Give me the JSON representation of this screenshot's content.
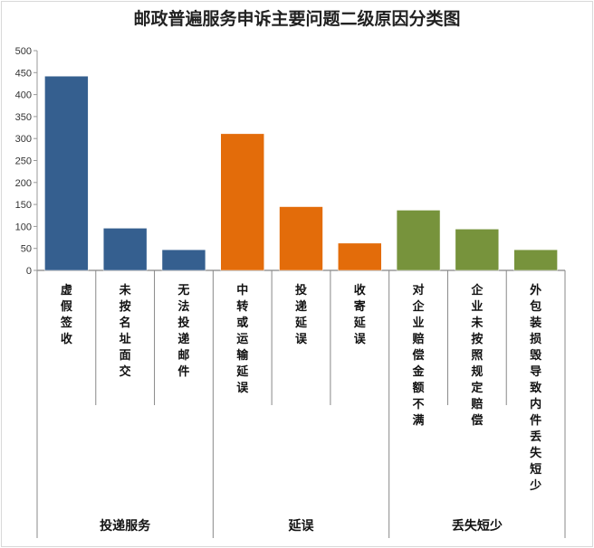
{
  "chart_data": {
    "type": "bar",
    "title": "邮政普遍服务申诉主要问题二级原因分类图",
    "categories": [
      "虚假签收",
      "未按名址面交",
      "无法投递邮件",
      "中转或运输延误",
      "投递延误",
      "收寄延误",
      "对企业赔偿金额不满",
      "企业未按照规定赔偿",
      "外包装损毁导致内件丢失短少"
    ],
    "groups": [
      {
        "name": "投递服务",
        "count": 3,
        "color": "#355f8f"
      },
      {
        "name": "延误",
        "count": 3,
        "color": "#e36c0a"
      },
      {
        "name": "丢失短少",
        "count": 3,
        "color": "#77933c"
      }
    ],
    "values": [
      442,
      96,
      47,
      311,
      145,
      62,
      137,
      94,
      47
    ],
    "ylim": [
      0,
      500
    ],
    "yticks": [
      0,
      50,
      100,
      150,
      200,
      250,
      300,
      350,
      400,
      450,
      500
    ],
    "grid": false,
    "legend": "none"
  }
}
